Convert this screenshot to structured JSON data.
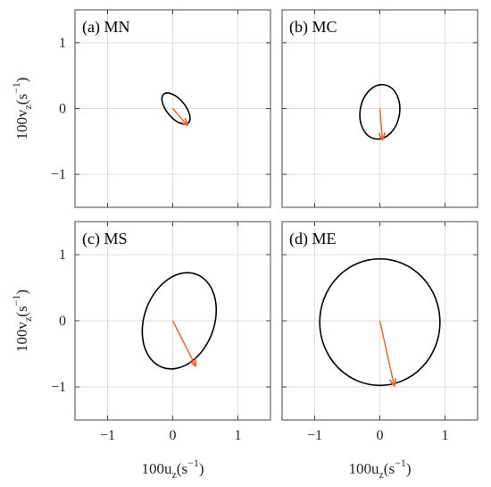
{
  "chart_data": [
    {
      "type": "scatter",
      "panel_label": "(a) MN",
      "ellipse": {
        "center": [
          0.05,
          0.0
        ],
        "semi_major": 0.29,
        "semi_minor": 0.14,
        "orientation_deg_ccw_from_x": -50
      },
      "vector": {
        "u": 0.22,
        "v": -0.25
      },
      "xlim": [
        -1.5,
        1.5
      ],
      "ylim": [
        -1.5,
        1.5
      ],
      "grid": true
    },
    {
      "type": "scatter",
      "panel_label": "(b) MC",
      "ellipse": {
        "center": [
          0.0,
          -0.05
        ],
        "semi_major": 0.42,
        "semi_minor": 0.3,
        "orientation_deg_ccw_from_x": 80
      },
      "vector": {
        "u": 0.04,
        "v": -0.47
      },
      "xlim": [
        -1.5,
        1.5
      ],
      "ylim": [
        -1.5,
        1.5
      ],
      "grid": true
    },
    {
      "type": "scatter",
      "panel_label": "(c) MS",
      "ellipse": {
        "center": [
          0.1,
          0.0
        ],
        "semi_major": 0.76,
        "semi_minor": 0.53,
        "orientation_deg_ccw_from_x": 70
      },
      "vector": {
        "u": 0.35,
        "v": -0.68
      },
      "xlim": [
        -1.5,
        1.5
      ],
      "ylim": [
        -1.5,
        1.5
      ],
      "grid": true
    },
    {
      "type": "scatter",
      "panel_label": "(d) ME",
      "ellipse": {
        "center": [
          0.0,
          -0.02
        ],
        "semi_major": 0.97,
        "semi_minor": 0.91,
        "orientation_deg_ccw_from_x": 90
      },
      "vector": {
        "u": 0.22,
        "v": -0.98
      },
      "xlim": [
        -1.5,
        1.5
      ],
      "ylim": [
        -1.5,
        1.5
      ],
      "grid": true
    }
  ],
  "axes": {
    "x_label_main": "100u",
    "x_label_sub": "z",
    "x_label_unit": "(s",
    "x_label_sup": "−1",
    "x_label_close": ")",
    "y_label_main": "100v",
    "y_label_sub": "z",
    "y_label_unit": "(s",
    "y_label_sup": "−1",
    "y_label_close": ")",
    "x_ticks": [
      -1,
      0,
      1
    ],
    "y_ticks": [
      -1,
      0,
      1
    ],
    "x_tick_labels": [
      "−1",
      "0",
      "1"
    ],
    "y_tick_labels": [
      "−1",
      "0",
      "1"
    ]
  },
  "colors": {
    "ellipse": "#000000",
    "vector": "#ff5a1f",
    "grid": "#dddddd",
    "frame": "#444444"
  }
}
